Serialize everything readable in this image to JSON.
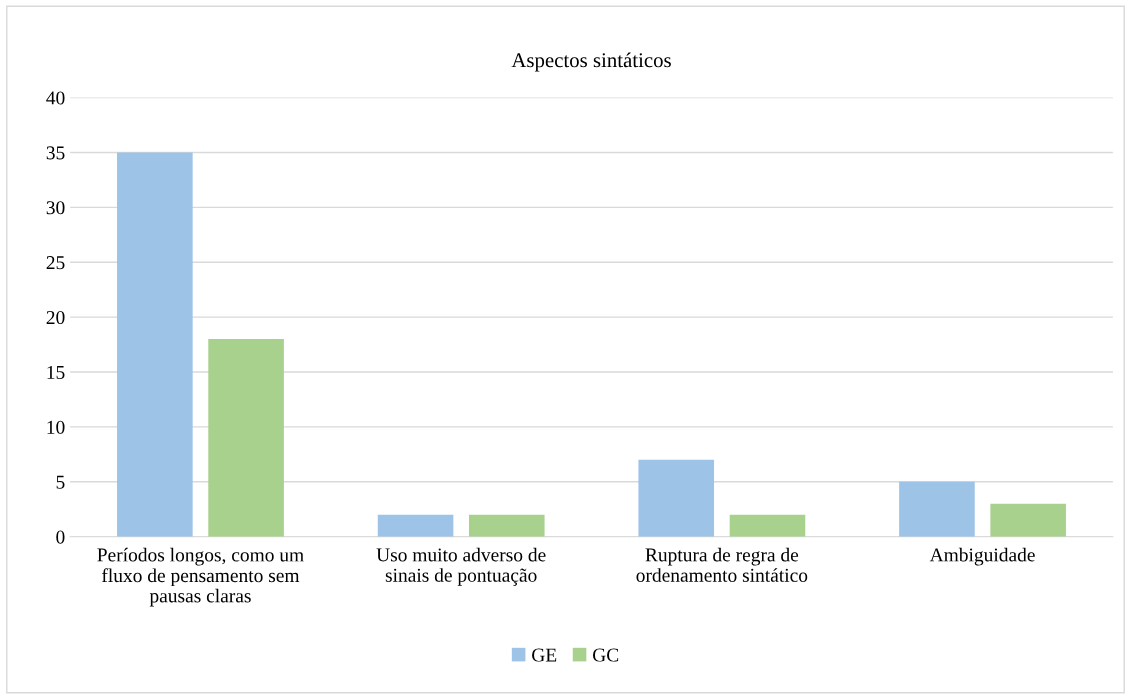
{
  "chart_data": {
    "type": "bar",
    "title": "Aspectos sintáticos",
    "categories": [
      "Períodos longos, como um\nfluxo de pensamento sem\npausas claras",
      "Uso muito adverso de\nsinais de pontuação",
      "Ruptura de regra de\nordenamento sintático",
      "Ambiguidade"
    ],
    "series": [
      {
        "name": "GE",
        "color": "#9dc3e6",
        "values": [
          35,
          2,
          7,
          5
        ]
      },
      {
        "name": "GC",
        "color": "#a9d18e",
        "values": [
          18,
          2,
          2,
          3
        ]
      }
    ],
    "ylim": [
      0,
      40
    ],
    "yticks": [
      0,
      5,
      10,
      15,
      20,
      25,
      30,
      35,
      40
    ],
    "grid": "y",
    "legend": "bottom"
  }
}
